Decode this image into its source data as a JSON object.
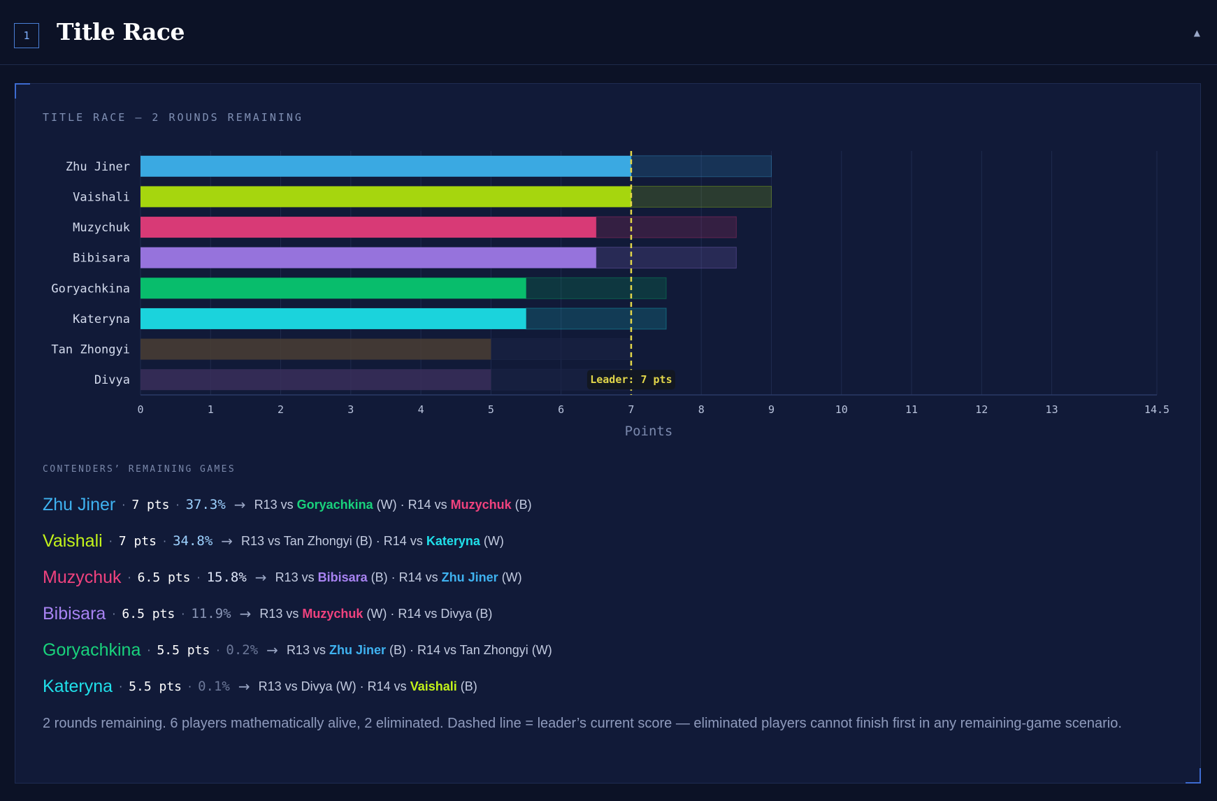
{
  "section": {
    "number": "1",
    "title": "Title Race",
    "collapse_icon": "triangle-up-icon"
  },
  "chart_data": {
    "type": "bar",
    "orientation": "horizontal",
    "title": "TITLE RACE — 2 ROUNDS REMAINING",
    "xlabel": "Points",
    "xlim": [
      0,
      14.5
    ],
    "xticks": [
      "0",
      "1",
      "2",
      "3",
      "4",
      "5",
      "6",
      "7",
      "8",
      "9",
      "10",
      "11",
      "12",
      "13",
      "14.5"
    ],
    "xtick_values": [
      0,
      1,
      2,
      3,
      4,
      5,
      6,
      7,
      8,
      9,
      10,
      11,
      12,
      13,
      14.5
    ],
    "grid": true,
    "leader_line": {
      "value": 7,
      "label": "Leader: 7 pts",
      "color": "#e2d64a"
    },
    "categories": [
      "Zhu Jiner",
      "Vaishali",
      "Muzychuk",
      "Bibisara",
      "Goryachkina",
      "Kateryna",
      "Tan Zhongyi",
      "Divya"
    ],
    "series": [
      {
        "name": "current",
        "values": [
          7,
          7,
          6.5,
          6.5,
          5.5,
          5.5,
          5,
          5
        ]
      },
      {
        "name": "max",
        "values": [
          9,
          9,
          8.5,
          8.5,
          7.5,
          7.5,
          7,
          7
        ]
      }
    ],
    "colors": [
      "#3aa9e2",
      "#a6d60e",
      "#d83a76",
      "#9673dc",
      "#08bd6c",
      "#1bd3dc",
      "#4a3e34",
      "#3a2f5a"
    ],
    "eliminated": [
      false,
      false,
      false,
      false,
      false,
      false,
      true,
      true
    ]
  },
  "contenders_title": "CONTENDERS’ REMAINING GAMES",
  "contenders": [
    {
      "name": "Zhu Jiner",
      "color": "#3fb2f0",
      "pts": "7 pts",
      "pct": "37.3%",
      "pct_color": "#9ed2ff",
      "g1_pre": "R13 vs ",
      "g1_opp": "Goryachkina",
      "g1_opp_color": "#19d27c",
      "g1_post": " (W) · ",
      "g2_pre": "R14 vs ",
      "g2_opp": "Muzychuk",
      "g2_opp_color": "#f0427e",
      "g2_post": " (B)"
    },
    {
      "name": "Vaishali",
      "color": "#c3f31a",
      "pts": "7 pts",
      "pct": "34.8%",
      "pct_color": "#9ed2ff",
      "g1_pre": "R13 vs Tan Zhongyi (B) · ",
      "g1_opp": "",
      "g1_opp_color": "#ffffff",
      "g1_post": "",
      "g2_pre": "R14 vs ",
      "g2_opp": "Kateryna",
      "g2_opp_color": "#20e0ea",
      "g2_post": " (W)"
    },
    {
      "name": "Muzychuk",
      "color": "#f0427e",
      "pts": "6.5 pts",
      "pct": "15.8%",
      "pct_color": "#dfe6f8",
      "g1_pre": "R13 vs ",
      "g1_opp": "Bibisara",
      "g1_opp_color": "#a883f2",
      "g1_post": " (B) · ",
      "g2_pre": "R14 vs ",
      "g2_opp": "Zhu Jiner",
      "g2_opp_color": "#3fb2f0",
      "g2_post": " (W)"
    },
    {
      "name": "Bibisara",
      "color": "#a883f2",
      "pts": "6.5 pts",
      "pct": "11.9%",
      "pct_color": "#8a96b6",
      "g1_pre": "R13 vs ",
      "g1_opp": "Muzychuk",
      "g1_opp_color": "#f0427e",
      "g1_post": " (W) · ",
      "g2_pre": "R14 vs Divya (B)",
      "g2_opp": "",
      "g2_opp_color": "#ffffff",
      "g2_post": ""
    },
    {
      "name": "Goryachkina",
      "color": "#19d27c",
      "pts": "5.5 pts",
      "pct": "0.2%",
      "pct_color": "#6c7898",
      "g1_pre": "R13 vs ",
      "g1_opp": "Zhu Jiner",
      "g1_opp_color": "#3fb2f0",
      "g1_post": " (B) · ",
      "g2_pre": "R14 vs Tan Zhongyi (W)",
      "g2_opp": "",
      "g2_opp_color": "#ffffff",
      "g2_post": ""
    },
    {
      "name": "Kateryna",
      "color": "#20e0ea",
      "pts": "5.5 pts",
      "pct": "0.1%",
      "pct_color": "#6c7898",
      "g1_pre": "R13 vs Divya (W) · ",
      "g1_opp": "",
      "g1_opp_color": "#ffffff",
      "g1_post": "",
      "g2_pre": "R14 vs ",
      "g2_opp": "Vaishali",
      "g2_opp_color": "#c3f31a",
      "g2_post": " (B)"
    }
  ],
  "note": "2 rounds remaining. 6 players mathematically alive, 2 eliminated. Dashed line = leader’s current score — eliminated players cannot finish first in any remaining-game scenario."
}
